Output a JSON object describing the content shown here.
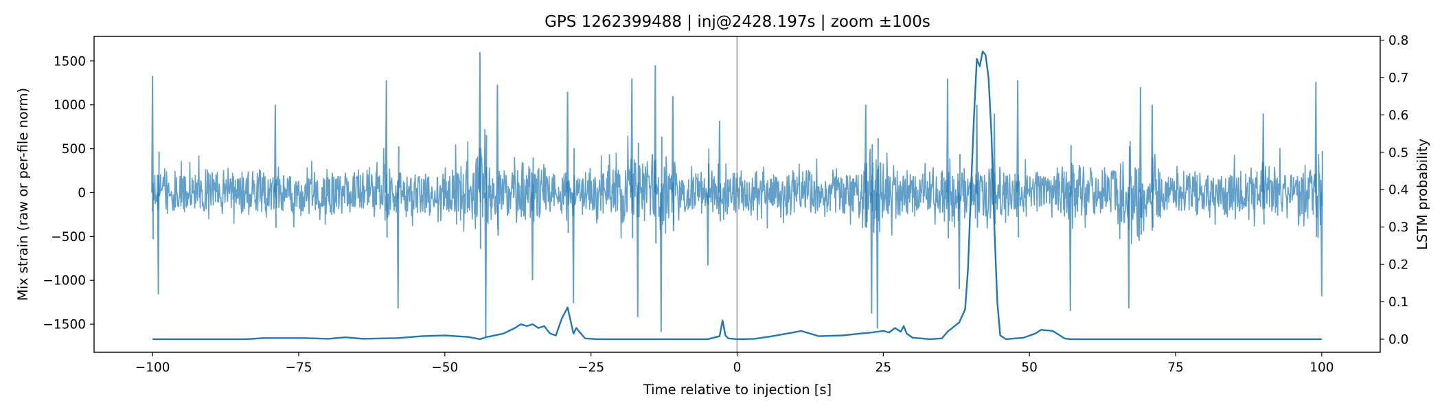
{
  "chart_data": {
    "type": "line",
    "title": "GPS 1262399488 | inj@2428.197s | zoom ±100s",
    "xlabel": "Time relative to injection [s]",
    "ylabel_left": "Mix strain (raw or per-file norm)",
    "ylabel_right": "LSTM probability",
    "xlim": [
      -110,
      110
    ],
    "ylim_left": [
      -1820,
      1780
    ],
    "ylim_right": [
      -0.035,
      0.81
    ],
    "x_ticks": [
      -100,
      -75,
      -50,
      -25,
      0,
      25,
      50,
      75,
      100
    ],
    "x_tick_labels": [
      "−100",
      "−75",
      "−50",
      "−25",
      "0",
      "25",
      "50",
      "75",
      "100"
    ],
    "y_left_ticks": [
      1500,
      1000,
      500,
      0,
      -500,
      -1000,
      -1500
    ],
    "y_left_tick_labels": [
      "1500",
      "1000",
      "500",
      "0",
      "−500",
      "−1000",
      "−1500"
    ],
    "y_right_ticks": [
      0.8,
      0.7,
      0.6,
      0.5,
      0.4,
      0.3,
      0.2,
      0.1,
      0.0
    ],
    "y_right_tick_labels": [
      "0.8",
      "0.7",
      "0.6",
      "0.5",
      "0.4",
      "0.3",
      "0.2",
      "0.1",
      "0.0"
    ],
    "grid": false,
    "injection_marker_x": 0,
    "series": [
      {
        "role": "strain",
        "axis": "left",
        "color": "#1f77b4",
        "opacity": 0.7,
        "x_range": [
          -100,
          100
        ],
        "base_amplitude": 300,
        "envelope_peaks": [
          [
            -100,
            1330
          ],
          [
            -99,
            -1160
          ],
          [
            -79,
            1000
          ],
          [
            -60,
            1280
          ],
          [
            -58,
            -1320
          ],
          [
            -44,
            1600
          ],
          [
            -43,
            -1640
          ],
          [
            -41,
            1230
          ],
          [
            -35,
            -1000
          ],
          [
            -29,
            1150
          ],
          [
            -28,
            -1260
          ],
          [
            -18,
            1300
          ],
          [
            -17,
            -1420
          ],
          [
            -14,
            1450
          ],
          [
            -13,
            -1590
          ],
          [
            -11,
            1100
          ],
          [
            -5,
            -830
          ],
          [
            -3,
            820
          ],
          [
            22,
            1000
          ],
          [
            23,
            -1380
          ],
          [
            24,
            -1550
          ],
          [
            36,
            1300
          ],
          [
            38,
            -1100
          ],
          [
            41,
            1000
          ],
          [
            44,
            900
          ],
          [
            48,
            1280
          ],
          [
            57,
            -1350
          ],
          [
            67,
            -1320
          ],
          [
            69,
            1200
          ],
          [
            71,
            1000
          ],
          [
            90,
            900
          ],
          [
            99,
            1260
          ],
          [
            100,
            -1180
          ]
        ]
      },
      {
        "role": "lstm_probability",
        "axis": "right",
        "color": "#1f77b4",
        "points": [
          [
            -100,
            0.0
          ],
          [
            -84,
            0.0
          ],
          [
            -81,
            0.003
          ],
          [
            -74,
            0.003
          ],
          [
            -70,
            0.001
          ],
          [
            -67,
            0.005
          ],
          [
            -64,
            0.001
          ],
          [
            -58,
            0.003
          ],
          [
            -54,
            0.008
          ],
          [
            -50,
            0.01
          ],
          [
            -46,
            0.006
          ],
          [
            -44,
            0.0
          ],
          [
            -43,
            0.005
          ],
          [
            -40,
            0.015
          ],
          [
            -38,
            0.03
          ],
          [
            -37,
            0.04
          ],
          [
            -36,
            0.035
          ],
          [
            -35,
            0.04
          ],
          [
            -34,
            0.03
          ],
          [
            -33,
            0.035
          ],
          [
            -32,
            0.015
          ],
          [
            -31,
            0.01
          ],
          [
            -30,
            0.055
          ],
          [
            -29,
            0.085
          ],
          [
            -28.5,
            0.05
          ],
          [
            -28,
            0.015
          ],
          [
            -27.5,
            0.03
          ],
          [
            -27,
            0.02
          ],
          [
            -26,
            0.002
          ],
          [
            -24,
            0.0
          ],
          [
            -5,
            0.0
          ],
          [
            -3,
            0.008
          ],
          [
            -2.5,
            0.05
          ],
          [
            -2,
            0.01
          ],
          [
            -1.5,
            0.002
          ],
          [
            0,
            0.0
          ],
          [
            3,
            0.001
          ],
          [
            6,
            0.008
          ],
          [
            11,
            0.022
          ],
          [
            14,
            0.008
          ],
          [
            18,
            0.01
          ],
          [
            21,
            0.015
          ],
          [
            23,
            0.018
          ],
          [
            25,
            0.022
          ],
          [
            26,
            0.018
          ],
          [
            27,
            0.03
          ],
          [
            28,
            0.02
          ],
          [
            28.5,
            0.035
          ],
          [
            29,
            0.015
          ],
          [
            30,
            0.004
          ],
          [
            33,
            0.0
          ],
          [
            35,
            0.002
          ],
          [
            36,
            0.02
          ],
          [
            38,
            0.045
          ],
          [
            39,
            0.08
          ],
          [
            39.5,
            0.19
          ],
          [
            40,
            0.4
          ],
          [
            40.5,
            0.59
          ],
          [
            41,
            0.75
          ],
          [
            41.5,
            0.73
          ],
          [
            42,
            0.77
          ],
          [
            42.5,
            0.76
          ],
          [
            43,
            0.7
          ],
          [
            43.5,
            0.55
          ],
          [
            44,
            0.3
          ],
          [
            44.5,
            0.1
          ],
          [
            45,
            0.01
          ],
          [
            46,
            0.0
          ],
          [
            49,
            0.004
          ],
          [
            51,
            0.015
          ],
          [
            52,
            0.025
          ],
          [
            54,
            0.022
          ],
          [
            55,
            0.012
          ],
          [
            56,
            0.002
          ],
          [
            57,
            0.0
          ],
          [
            100,
            0.0
          ]
        ]
      }
    ]
  }
}
